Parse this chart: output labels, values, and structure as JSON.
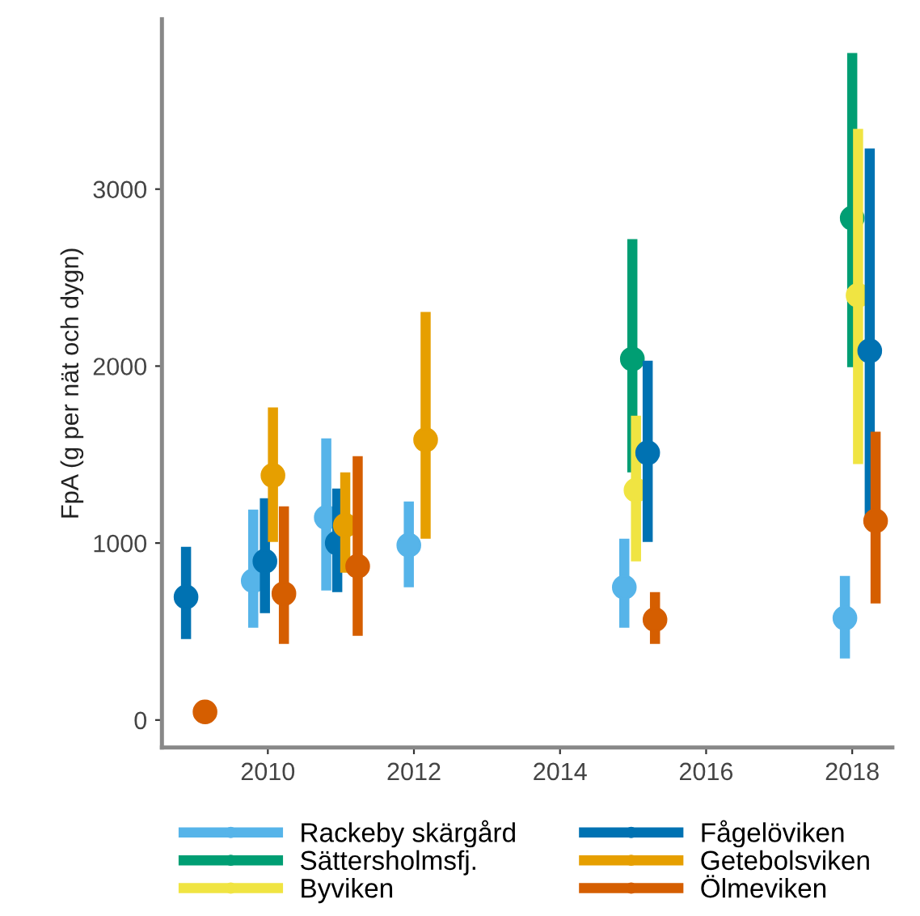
{
  "chart_data": {
    "type": "scatter",
    "ylabel": "FpA (g per nät och dygn)",
    "xlim": [
      2008.55,
      2018.55
    ],
    "xticks": [
      2010,
      2012,
      2014,
      2016,
      2018
    ],
    "ylim": [
      -155,
      3960
    ],
    "yticks": [
      0,
      1000,
      2000,
      3000
    ],
    "grid": false,
    "legend": "bottom",
    "marker": "circle",
    "series": [
      {
        "name": "Rackeby skärgård",
        "color": "#56b4e9",
        "x": [
          2009.8,
          2010.8,
          2011.93,
          2014.88,
          2017.9
        ],
        "values": [
          787,
          1144,
          988,
          750,
          576
        ],
        "errors": [
          [
            521,
            1189
          ],
          [
            732,
            1592
          ],
          [
            750,
            1235
          ],
          [
            521,
            1025
          ],
          [
            348,
            814
          ]
        ]
      },
      {
        "name": "Sättersholmsfj.",
        "color": "#009e73",
        "x": [
          2014.99,
          2018.0
        ],
        "values": [
          2040,
          2836
        ],
        "errors": [
          [
            1400,
            2717
          ],
          [
            1994,
            3769
          ]
        ]
      },
      {
        "name": "Byviken",
        "color": "#f0e442",
        "x": [
          2015.04,
          2018.08
        ],
        "values": [
          1299,
          2400
        ],
        "errors": [
          [
            897,
            1720
          ],
          [
            1446,
            3340
          ]
        ]
      },
      {
        "name": "Fågelöviken",
        "color": "#0072b2",
        "x": [
          2008.88,
          2009.96,
          2010.95,
          2015.2,
          2018.24
        ],
        "values": [
          695,
          897,
          1000,
          1510,
          2086
        ],
        "errors": [
          [
            457,
            979
          ],
          [
            604,
            1253
          ],
          [
            723,
            1308
          ],
          [
            1006,
            2031
          ],
          [
            1116,
            3230
          ]
        ]
      },
      {
        "name": "Getebolsviken",
        "color": "#e69f00",
        "x": [
          2010.07,
          2011.06,
          2012.16
        ],
        "values": [
          1382,
          1100,
          1583
        ],
        "errors": [
          [
            1006,
            1766
          ],
          [
            833,
            1400
          ],
          [
            1025,
            2306
          ]
        ]
      },
      {
        "name": "Ölmeviken",
        "color": "#d55e00",
        "x": [
          2009.14,
          2010.22,
          2011.23,
          2015.3,
          2018.32
        ],
        "values": [
          46,
          714,
          869,
          567,
          1125
        ],
        "errors": [
          null,
          [
            430,
            1208
          ],
          [
            476,
            1491
          ],
          [
            430,
            723
          ],
          [
            659,
            1629
          ]
        ]
      }
    ]
  }
}
